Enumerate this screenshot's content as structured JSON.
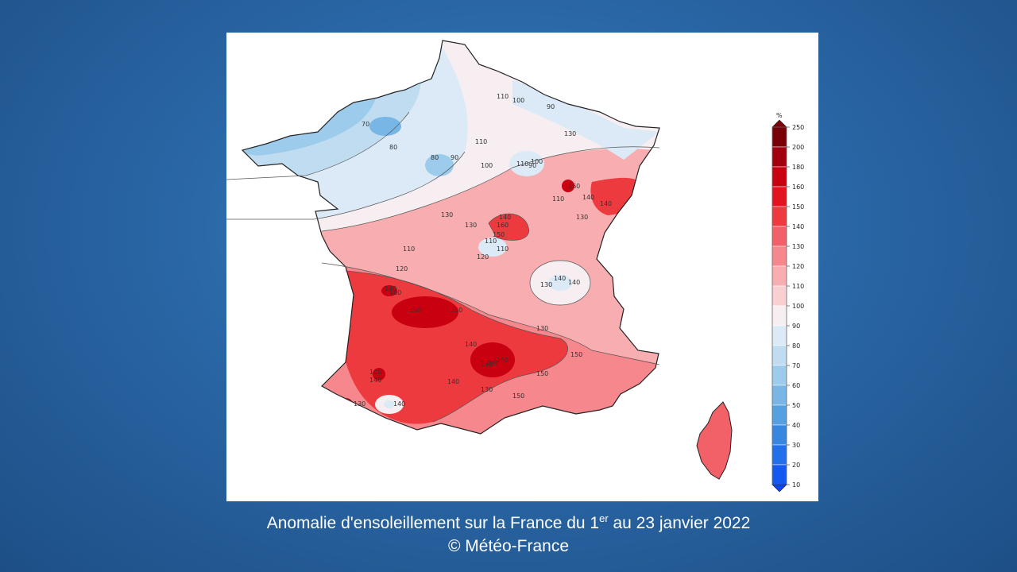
{
  "map": {
    "legend": {
      "unit": "%",
      "ticks": [
        "250",
        "200",
        "180",
        "160",
        "150",
        "140",
        "130",
        "120",
        "110",
        "100",
        "90",
        "80",
        "70",
        "60",
        "50",
        "40",
        "30",
        "20",
        "10"
      ],
      "colors": [
        "#7a0008",
        "#a2000e",
        "#c8000f",
        "#e2141f",
        "#ec3a3f",
        "#f36168",
        "#f6878c",
        "#f8adb0",
        "#f9d0d2",
        "#f6eef0",
        "#dbeaf6",
        "#bfdcf1",
        "#9ccbeb",
        "#78b6e5",
        "#54a0e0",
        "#3787e0",
        "#2170ea",
        "#1359f0",
        "#0a45f4"
      ]
    },
    "contour_labels": [
      "110",
      "100",
      "90",
      "110",
      "80",
      "70",
      "80",
      "90",
      "90",
      "110",
      "100",
      "130",
      "130",
      "130",
      "140",
      "160",
      "150",
      "110",
      "110",
      "120",
      "110",
      "120",
      "140",
      "160",
      "150",
      "150",
      "140",
      "150",
      "160",
      "140",
      "130",
      "140",
      "140",
      "130",
      "160",
      "130",
      "140",
      "110",
      "100",
      "140",
      "150",
      "150",
      "130",
      "150",
      "140",
      "140",
      "130",
      "140",
      "130"
    ]
  },
  "caption": {
    "line1_before": "Anomalie d'ensoleillement sur la France du 1",
    "line1_sup": "er",
    "line1_after": " au 23 janvier 2022",
    "line2": "© Météo-France"
  }
}
